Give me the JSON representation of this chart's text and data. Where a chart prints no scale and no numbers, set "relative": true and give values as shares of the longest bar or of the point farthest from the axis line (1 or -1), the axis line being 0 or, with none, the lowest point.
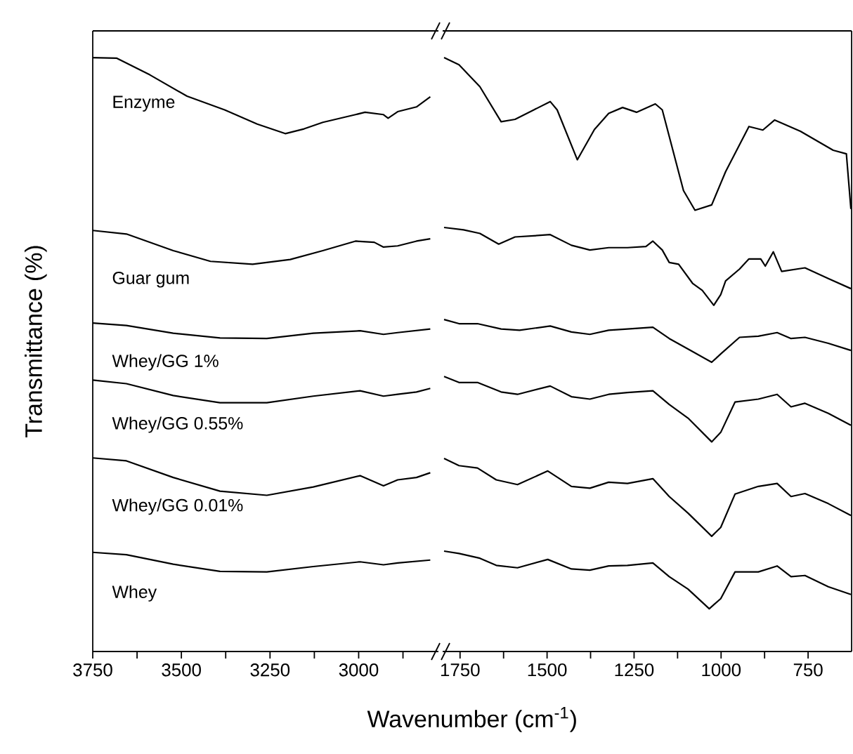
{
  "chart_data": [
    {
      "type": "line",
      "relative": true,
      "xlabel": "Wavenumber (cm$^{-1}$)",
      "ylabel": "Transmittance (%)",
      "tick_labels": "x",
      "xlim": [
        3750,
        2775
      ],
      "xticks": [
        3750,
        3500,
        3250,
        3000,
        {
          "value": 3625,
          "label": null
        },
        {
          "value": 3375,
          "label": null
        },
        {
          "value": 3125,
          "label": null
        },
        {
          "value": 2875,
          "label": null
        }
      ],
      "series": [
        {
          "name": "Enzyme",
          "color": "#000000",
          "x": [
            3750,
            3682,
            3589,
            3484,
            3378,
            3286,
            3207,
            3154,
            3101,
            3009,
            2982,
            2930,
            2917,
            2890,
            2837,
            2798
          ],
          "values": [
            1.0,
            0.999,
            0.971,
            0.935,
            0.912,
            0.888,
            0.872,
            0.88,
            0.891,
            0.904,
            0.908,
            0.904,
            0.898,
            0.909,
            0.917,
            0.934
          ]
        },
        {
          "name": "Guar gum",
          "color": "#000000",
          "x": [
            3750,
            3655,
            3523,
            3418,
            3299,
            3193,
            3101,
            3009,
            2956,
            2930,
            2890,
            2837,
            2798
          ],
          "values": [
            0.709,
            0.703,
            0.675,
            0.657,
            0.652,
            0.66,
            0.675,
            0.691,
            0.689,
            0.681,
            0.683,
            0.691,
            0.695
          ]
        },
        {
          "name": "Whey/GG 1%",
          "color": "#000000",
          "x": [
            3750,
            3655,
            3523,
            3391,
            3259,
            3128,
            2996,
            2930,
            2890,
            2798
          ],
          "values": [
            0.553,
            0.549,
            0.536,
            0.528,
            0.527,
            0.536,
            0.54,
            0.534,
            0.537,
            0.543
          ]
        },
        {
          "name": "Whey/GG 0.55%",
          "color": "#000000",
          "x": [
            3750,
            3655,
            3523,
            3391,
            3259,
            3128,
            2996,
            2930,
            2890,
            2837,
            2798
          ],
          "values": [
            0.457,
            0.451,
            0.431,
            0.419,
            0.419,
            0.43,
            0.439,
            0.43,
            0.433,
            0.437,
            0.443
          ]
        },
        {
          "name": "Whey/GG 0.01%",
          "color": "#000000",
          "x": [
            3750,
            3655,
            3523,
            3391,
            3259,
            3128,
            2996,
            2930,
            2890,
            2837,
            2798
          ],
          "values": [
            0.326,
            0.321,
            0.293,
            0.27,
            0.263,
            0.277,
            0.296,
            0.279,
            0.289,
            0.293,
            0.301
          ]
        },
        {
          "name": "Whey",
          "color": "#000000",
          "x": [
            3750,
            3655,
            3523,
            3391,
            3259,
            3128,
            2996,
            2930,
            2890,
            2798
          ],
          "values": [
            0.167,
            0.163,
            0.147,
            0.135,
            0.134,
            0.143,
            0.151,
            0.146,
            0.149,
            0.154
          ]
        }
      ]
    },
    {
      "type": "line",
      "relative": true,
      "tick_labels": "x",
      "xlim": [
        1800,
        625
      ],
      "xticks": [
        1750,
        1500,
        1250,
        1000,
        750,
        {
          "value": 1625,
          "label": null
        },
        {
          "value": 1375,
          "label": null
        },
        {
          "value": 1125,
          "label": null
        },
        {
          "value": 875,
          "label": null
        }
      ],
      "series": [
        {
          "color": "#000000",
          "x": [
            1796,
            1753,
            1693,
            1632,
            1592,
            1538,
            1491,
            1471,
            1413,
            1364,
            1323,
            1283,
            1243,
            1189,
            1169,
            1108,
            1075,
            1027,
            987,
            920,
            880,
            846,
            772,
            678,
            640,
            627
          ],
          "values": [
            1.0,
            0.988,
            0.951,
            0.892,
            0.896,
            0.912,
            0.926,
            0.912,
            0.828,
            0.879,
            0.906,
            0.916,
            0.908,
            0.922,
            0.912,
            0.776,
            0.743,
            0.752,
            0.808,
            0.884,
            0.878,
            0.895,
            0.876,
            0.844,
            0.838,
            0.745
          ]
        },
        {
          "color": "#000000",
          "x": [
            1796,
            1740,
            1693,
            1639,
            1592,
            1538,
            1491,
            1430,
            1377,
            1323,
            1269,
            1216,
            1196,
            1169,
            1149,
            1122,
            1082,
            1054,
            1021,
            1001,
            987,
            947,
            920,
            886,
            873,
            850,
            826,
            759,
            692,
            627
          ],
          "values": [
            0.714,
            0.71,
            0.704,
            0.686,
            0.698,
            0.7,
            0.702,
            0.684,
            0.676,
            0.68,
            0.68,
            0.682,
            0.691,
            0.676,
            0.655,
            0.652,
            0.62,
            0.608,
            0.583,
            0.601,
            0.624,
            0.644,
            0.661,
            0.661,
            0.649,
            0.673,
            0.64,
            0.646,
            0.628,
            0.611
          ]
        },
        {
          "color": "#000000",
          "x": [
            1796,
            1753,
            1700,
            1632,
            1579,
            1491,
            1430,
            1377,
            1323,
            1269,
            1196,
            1149,
            1082,
            1027,
            1001,
            947,
            893,
            839,
            799,
            759,
            692,
            627
          ],
          "values": [
            0.559,
            0.552,
            0.552,
            0.543,
            0.541,
            0.548,
            0.538,
            0.534,
            0.541,
            0.543,
            0.546,
            0.527,
            0.505,
            0.487,
            0.501,
            0.529,
            0.531,
            0.537,
            0.527,
            0.529,
            0.519,
            0.507
          ]
        },
        {
          "color": "#000000",
          "x": [
            1796,
            1753,
            1700,
            1632,
            1585,
            1491,
            1430,
            1377,
            1323,
            1269,
            1196,
            1149,
            1095,
            1027,
            1001,
            960,
            893,
            839,
            799,
            759,
            692,
            627
          ],
          "values": [
            0.463,
            0.453,
            0.453,
            0.437,
            0.433,
            0.447,
            0.429,
            0.425,
            0.433,
            0.436,
            0.439,
            0.416,
            0.393,
            0.353,
            0.369,
            0.42,
            0.425,
            0.433,
            0.412,
            0.418,
            0.401,
            0.381
          ]
        },
        {
          "color": "#000000",
          "x": [
            1796,
            1753,
            1700,
            1646,
            1585,
            1498,
            1430,
            1377,
            1323,
            1269,
            1196,
            1149,
            1095,
            1027,
            1001,
            960,
            893,
            839,
            799,
            759,
            692,
            627
          ],
          "values": [
            0.325,
            0.313,
            0.309,
            0.289,
            0.281,
            0.304,
            0.278,
            0.275,
            0.285,
            0.283,
            0.291,
            0.261,
            0.233,
            0.194,
            0.209,
            0.265,
            0.278,
            0.283,
            0.261,
            0.266,
            0.249,
            0.229
          ]
        },
        {
          "color": "#000000",
          "x": [
            1796,
            1753,
            1693,
            1646,
            1585,
            1498,
            1430,
            1377,
            1323,
            1269,
            1196,
            1149,
            1095,
            1034,
            1001,
            960,
            893,
            839,
            799,
            759,
            692,
            627
          ],
          "values": [
            0.169,
            0.165,
            0.157,
            0.145,
            0.141,
            0.155,
            0.139,
            0.137,
            0.144,
            0.145,
            0.149,
            0.126,
            0.105,
            0.072,
            0.089,
            0.134,
            0.134,
            0.144,
            0.126,
            0.128,
            0.109,
            0.096
          ]
        }
      ]
    }
  ]
}
